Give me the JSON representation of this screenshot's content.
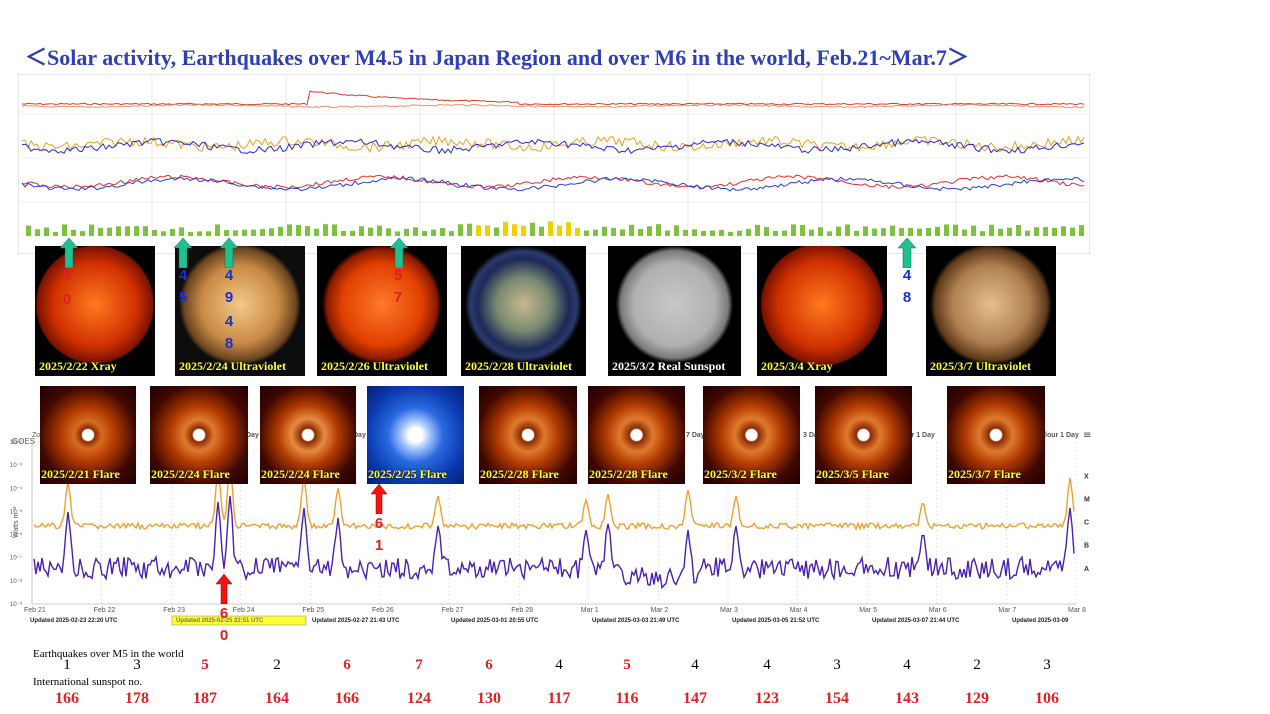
{
  "title": "＜Solar activity, Earthquakes over M4.5 in Japan Region and over M6 in the world, Feb.21~Mar.7＞",
  "sun_images": [
    {
      "caption": "2025/2/22 Xray",
      "kind": "xray"
    },
    {
      "caption": "2025/2/24 Ultraviolet",
      "kind": "uv-gold"
    },
    {
      "caption": "2025/2/26 Ultraviolet",
      "kind": "uv-red"
    },
    {
      "caption": "2025/2/28 Ultraviolet",
      "kind": "uv-green"
    },
    {
      "caption": "2025/3/2 Real Sunspot",
      "kind": "white"
    },
    {
      "caption": "2025/3/4 Xray",
      "kind": "xray"
    },
    {
      "caption": "2025/3/7 Ultraviolet",
      "kind": "uv-gold"
    }
  ],
  "coronagraphs": [
    {
      "caption": "2025/2/21 Flare",
      "kind": "red"
    },
    {
      "caption": "2025/2/24 Flare",
      "kind": "red"
    },
    {
      "caption": "2025/2/24 Flare",
      "kind": "red"
    },
    {
      "caption": "2025/2/25 Flare",
      "kind": "blue"
    },
    {
      "caption": "2025/2/28 Flare",
      "kind": "red"
    },
    {
      "caption": "2025/2/28 Flare",
      "kind": "red"
    },
    {
      "caption": "2025/3/2 Flare",
      "kind": "red"
    },
    {
      "caption": "2025/3/5 Flare",
      "kind": "red"
    },
    {
      "caption": "2025/3/7 Flare",
      "kind": "red"
    }
  ],
  "japan_quake_markers": [
    {
      "digits": [
        "5",
        "0"
      ],
      "color": "#e02020"
    },
    {
      "digits": [
        "4",
        "5"
      ],
      "color": "#1a2fd0"
    },
    {
      "digits": [
        "4",
        "9",
        "4",
        "8"
      ],
      "color": "#1a2fd0"
    },
    {
      "digits": [
        "5",
        "7"
      ],
      "color": "#e02020"
    },
    {
      "digits": [
        "4",
        "8"
      ],
      "color": "#1a2fd0"
    }
  ],
  "world_quake_markers": [
    {
      "digits": [
        "6",
        "1"
      ],
      "color": "#e02020"
    },
    {
      "digits": [
        "6",
        "0"
      ],
      "color": "#e02020"
    }
  ],
  "goes_chart": {
    "label": "GOES",
    "ylabel": "Watts m⁻²",
    "y_ticks": [
      "10⁻²",
      "10⁻³",
      "10⁻⁴",
      "10⁻⁵",
      "10⁻⁶",
      "10⁻⁷",
      "10⁻⁸",
      "10⁻⁹"
    ],
    "classes": [
      "X",
      "M",
      "C",
      "B",
      "A"
    ],
    "x_dates": [
      "Feb 21",
      "Feb 22",
      "Feb 23",
      "Feb 24",
      "Feb 25",
      "Feb 26",
      "Feb 27",
      "Feb 28",
      "Mar 1",
      "Mar 2",
      "Mar 3",
      "Mar 4",
      "Mar 5",
      "Mar 6",
      "Mar 7",
      "Mar 8"
    ],
    "tabs_left": "Zo",
    "tabs": [
      "Day",
      "Day",
      "7 Day",
      "3 Day",
      "our 1 Day",
      "lour 1 Day"
    ],
    "updated": [
      "Updated 2025-02-23 22:20 UTC",
      "Updated 2025-02-25 22:51 UTC",
      "Updated 2025-02-27 21:43 UTC",
      "Updated 2025-03-01 20:55 UTC",
      "Updated 2025-03-03 21:49 UTC",
      "Updated 2025-03-05 21:52 UTC",
      "Updated 2025-03-07 21:44 UTC",
      "Updated 2025-03-09"
    ]
  },
  "chart_data": {
    "type": "table",
    "row_labels": [
      "Earthquakes over M5 in the world",
      "International sunspot no."
    ],
    "earthquakes_over_M5": [
      1,
      3,
      5,
      2,
      6,
      7,
      6,
      4,
      5,
      4,
      4,
      3,
      4,
      2,
      3
    ],
    "earthquake_colors": [
      "#000",
      "#000",
      "#e02020",
      "#000",
      "#e02020",
      "#e02020",
      "#e02020",
      "#000",
      "#e02020",
      "#000",
      "#000",
      "#000",
      "#000",
      "#000",
      "#000"
    ],
    "sunspot_numbers": [
      166,
      178,
      187,
      164,
      166,
      124,
      130,
      117,
      116,
      147,
      123,
      154,
      143,
      129,
      106
    ]
  }
}
